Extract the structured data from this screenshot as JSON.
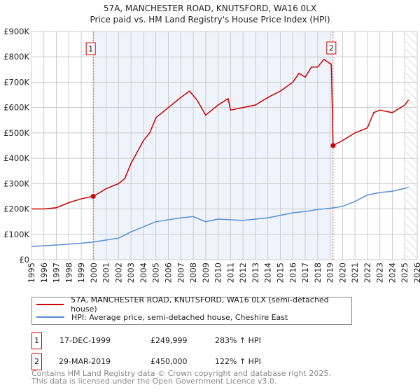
{
  "chart_data": {
    "type": "line",
    "title": "57A, MANCHESTER ROAD, KNUTSFORD, WA16 0LX",
    "subtitle": "Price paid vs. HM Land Registry's House Price Index (HPI)",
    "xlim": [
      1995,
      2026
    ],
    "ylim": [
      0,
      900000
    ],
    "y_ticks": [
      {
        "v": 0,
        "label": "£0"
      },
      {
        "v": 100000,
        "label": "£100K"
      },
      {
        "v": 200000,
        "label": "£200K"
      },
      {
        "v": 300000,
        "label": "£300K"
      },
      {
        "v": 400000,
        "label": "£400K"
      },
      {
        "v": 500000,
        "label": "£500K"
      },
      {
        "v": 600000,
        "label": "£600K"
      },
      {
        "v": 700000,
        "label": "£700K"
      },
      {
        "v": 800000,
        "label": "£800K"
      },
      {
        "v": 900000,
        "label": "£900K"
      }
    ],
    "x_ticks": [
      "1995",
      "1996",
      "1997",
      "1998",
      "1999",
      "2000",
      "2001",
      "2002",
      "2003",
      "2004",
      "2005",
      "2006",
      "2007",
      "2008",
      "2009",
      "2010",
      "2011",
      "2012",
      "2013",
      "2014",
      "2015",
      "2016",
      "2017",
      "2018",
      "2019",
      "2020",
      "2021",
      "2022",
      "2023",
      "2024",
      "2025",
      "2026"
    ],
    "grid": true,
    "shaded_range": [
      1999.96,
      2019.24
    ],
    "hatched_from": 2025.1,
    "series": [
      {
        "name": "57A, MANCHESTER ROAD, KNUTSFORD, WA16 0LX (semi-detached house)",
        "color": "#cc0000",
        "x": [
          1995,
          1996,
          1997,
          1998,
          1999,
          1999.96,
          2000.5,
          2001,
          2002,
          2002.5,
          2003,
          2004,
          2004.5,
          2005,
          2006,
          2007,
          2007.7,
          2008.3,
          2009,
          2010,
          2010.8,
          2011,
          2012,
          2013,
          2014,
          2015,
          2016,
          2016.5,
          2017,
          2017.5,
          2018,
          2018.5,
          2019.1,
          2019.24,
          2020,
          2021,
          2022,
          2022.5,
          2023,
          2024,
          2025,
          2025.3
        ],
        "y": [
          200000,
          200000,
          205000,
          225000,
          240000,
          250000,
          265000,
          280000,
          300000,
          320000,
          380000,
          470000,
          500000,
          560000,
          600000,
          640000,
          665000,
          630000,
          570000,
          610000,
          635000,
          590000,
          600000,
          610000,
          640000,
          665000,
          700000,
          735000,
          720000,
          760000,
          760000,
          790000,
          770000,
          450000,
          470000,
          500000,
          520000,
          580000,
          590000,
          580000,
          610000,
          630000
        ]
      },
      {
        "name": "HPI: Average price, semi-detached house, Cheshire East",
        "color": "#5b8fd6",
        "x": [
          1995,
          1997,
          1999,
          2000,
          2002,
          2003,
          2004,
          2005,
          2007,
          2008,
          2009,
          2010,
          2012,
          2014,
          2015,
          2016,
          2017,
          2018,
          2019,
          2020,
          2021,
          2022,
          2023,
          2024,
          2025.3
        ],
        "y": [
          52000,
          58000,
          65000,
          70000,
          85000,
          110000,
          130000,
          150000,
          165000,
          170000,
          150000,
          160000,
          155000,
          165000,
          175000,
          185000,
          190000,
          198000,
          203000,
          210000,
          230000,
          255000,
          265000,
          270000,
          285000
        ]
      }
    ],
    "markers": [
      {
        "label": "1",
        "x": 1999.96,
        "y": 249999
      },
      {
        "label": "2",
        "x": 2019.24,
        "y": 450000
      }
    ]
  },
  "legend": [
    "57A, MANCHESTER ROAD, KNUTSFORD, WA16 0LX (semi-detached house)",
    "HPI: Average price, semi-detached house, Cheshire East"
  ],
  "transactions": [
    {
      "num": "1",
      "date": "17-DEC-1999",
      "price": "£249,999",
      "hpi": "283% ↑ HPI"
    },
    {
      "num": "2",
      "date": "29-MAR-2019",
      "price": "£450,000",
      "hpi": "122% ↑ HPI"
    }
  ],
  "footer": [
    "Contains HM Land Registry data © Crown copyright and database right 2025.",
    "This data is licensed under the Open Government Licence v3.0."
  ]
}
